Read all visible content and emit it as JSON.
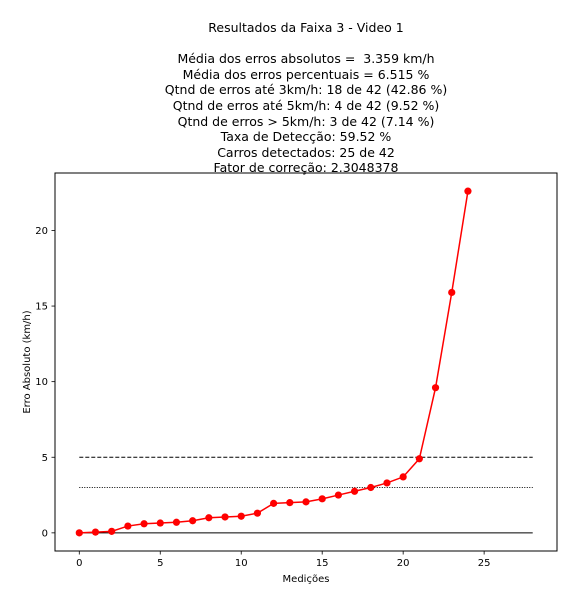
{
  "chart_data": {
    "type": "line",
    "title_lines": [
      "Resultados da Faixa 3 - Video 1",
      "",
      "Média dos erros absolutos =  3.359 km/h",
      "Média dos erros percentuais = 6.515 %",
      "Qtnd de erros até 3km/h: 18 de 42 (42.86 %)",
      "Qtnd de erros até 5km/h: 4 de 42 (9.52 %)",
      "Qtnd de erros > 5km/h: 3 de 42 (7.14 %)",
      "Taxa de Detecção: 59.52 %",
      "Carros detectados: 25 de 42",
      "Fator de correção: 2.3048378"
    ],
    "xlabel": "Medições",
    "ylabel": "Erro Absoluto (km/h)",
    "xlim": [
      -1.5,
      29.5
    ],
    "ylim": [
      -1.2,
      23.8
    ],
    "xticks": [
      0,
      5,
      10,
      15,
      20,
      25
    ],
    "yticks": [
      0,
      5,
      10,
      15,
      20
    ],
    "series": [
      {
        "color": "#ff0000",
        "marker": "circle",
        "x": [
          0,
          1,
          2,
          3,
          4,
          5,
          6,
          7,
          8,
          9,
          10,
          11,
          12,
          13,
          14,
          15,
          16,
          17,
          18,
          19,
          20,
          21,
          22,
          23,
          24
        ],
        "values": [
          0.0,
          0.05,
          0.1,
          0.45,
          0.6,
          0.65,
          0.7,
          0.8,
          1.0,
          1.05,
          1.1,
          1.3,
          1.95,
          2.0,
          2.05,
          2.25,
          2.5,
          2.75,
          3.0,
          3.3,
          3.7,
          4.9,
          9.6,
          15.9,
          22.6
        ]
      }
    ],
    "reference_lines": [
      {
        "y": 5,
        "style": "dashed",
        "color": "#000000",
        "x": [
          0,
          28
        ]
      },
      {
        "y": 3,
        "style": "dotted",
        "color": "#000000",
        "x": [
          0,
          28
        ]
      },
      {
        "y": 0,
        "style": "solid",
        "color": "#000000",
        "x": [
          0,
          28
        ]
      }
    ],
    "grid": false,
    "legend": "none"
  }
}
